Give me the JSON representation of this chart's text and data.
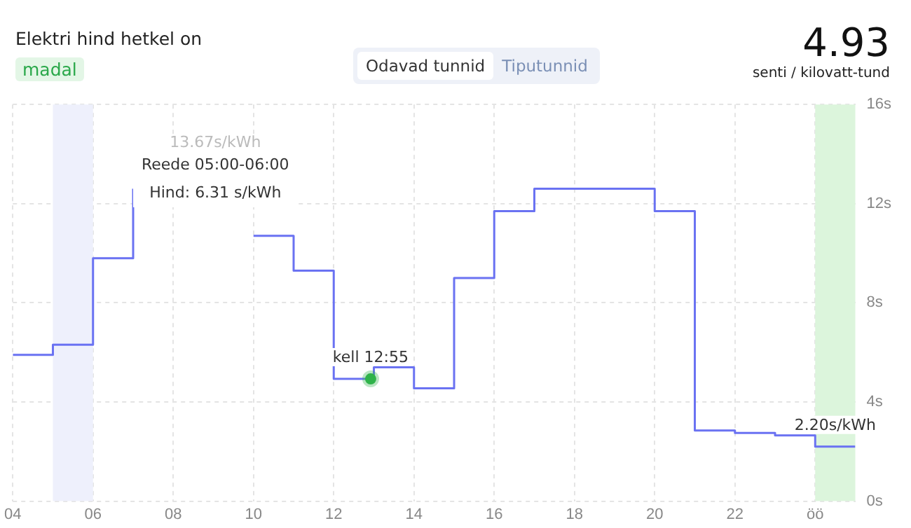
{
  "chart_data": {
    "type": "step",
    "title": "Elektri hind hetkel on",
    "x": [
      4,
      5,
      6,
      7,
      8,
      9,
      10,
      11,
      12,
      13,
      14,
      15,
      16,
      17,
      18,
      19,
      20,
      21,
      22,
      23,
      24,
      25
    ],
    "series": [
      {
        "color": "#6a72f2",
        "values": [
          5.9,
          6.31,
          9.8,
          12.6,
          null,
          null,
          10.7,
          9.3,
          4.93,
          5.4,
          4.55,
          9.0,
          11.7,
          12.6,
          12.6,
          12.6,
          11.7,
          2.85,
          2.75,
          2.65,
          2.2,
          2.2
        ]
      },
      {
        "type": "scatter",
        "color": "#2fb34a",
        "x": [
          12.92
        ],
        "values": [
          4.93
        ]
      }
    ],
    "xlim": [
      4,
      25
    ],
    "xticks": [
      {
        "value": 4,
        "label": "04"
      },
      {
        "value": 6,
        "label": "06"
      },
      {
        "value": 8,
        "label": "08"
      },
      {
        "value": 10,
        "label": "10"
      },
      {
        "value": 12,
        "label": "12"
      },
      {
        "value": 14,
        "label": "14"
      },
      {
        "value": 16,
        "label": "16"
      },
      {
        "value": 18,
        "label": "18"
      },
      {
        "value": 20,
        "label": "20"
      },
      {
        "value": 22,
        "label": "22"
      },
      {
        "value": 24,
        "label": "öö"
      }
    ],
    "ylim": [
      0,
      16
    ],
    "yticks": [
      {
        "value": 0,
        "label": "0s"
      },
      {
        "value": 4,
        "label": "4s"
      },
      {
        "value": 8,
        "label": "8s"
      },
      {
        "value": 12,
        "label": "12s"
      },
      {
        "value": 16,
        "label": "16s"
      }
    ],
    "grid": true,
    "legend": false,
    "bands": [
      {
        "axis": "x",
        "from": 5,
        "to": 6,
        "color": "#eef0fc"
      },
      {
        "axis": "x",
        "from": 24,
        "to": 25,
        "color": "#dcf5dc"
      }
    ],
    "annotations": [
      "madal",
      "Odavad tunnid",
      "Tiputunnid",
      "4.93",
      "senti / kilovatt-tund",
      "Reede 05:00-06:00",
      "Hind: 6.31 s/kWh",
      "13.67s/kWh",
      {
        "text": "kell 12:55",
        "x": 12.92,
        "y": 4.93
      },
      {
        "text": "2.20s/kWh",
        "x": 24.5,
        "y": 2.2
      }
    ]
  }
}
